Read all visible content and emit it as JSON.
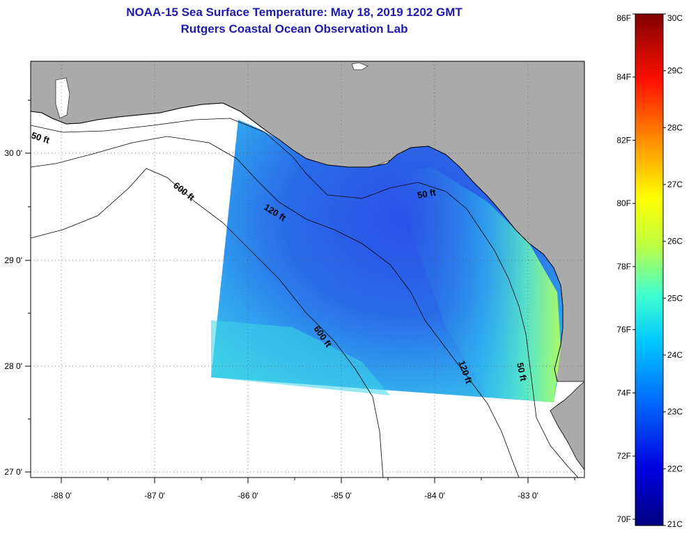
{
  "title": {
    "line1": "NOAA-15 Sea Surface Temperature:  May 18, 2019 1202 GMT",
    "line2": "Rutgers Coastal Ocean Observation Lab"
  },
  "axes": {
    "lon_ticks": [
      "-88 0'",
      "-87 0'",
      "-86 0'",
      "-85 0'",
      "-84 0'",
      "-83 0'"
    ],
    "lat_ticks": [
      "30 0'",
      "29 0'",
      "28 0'",
      "27 0'"
    ]
  },
  "contours": {
    "label_50": "50 ft",
    "label_120": "120 ft",
    "label_600": "600 ft"
  },
  "colorbar": {
    "fahrenheit": [
      "86F",
      "84F",
      "82F",
      "80F",
      "78F",
      "76F",
      "74F",
      "72F",
      "70F"
    ],
    "celsius": [
      "30C",
      "29C",
      "28C",
      "27C",
      "26C",
      "25C",
      "24C",
      "23C",
      "22C",
      "21C"
    ],
    "min_c": 21,
    "max_c": 30
  },
  "colors": {
    "land": "#aaaaaa",
    "ocean_nodata": "#ffffff",
    "title": "#1c1ca8"
  }
}
